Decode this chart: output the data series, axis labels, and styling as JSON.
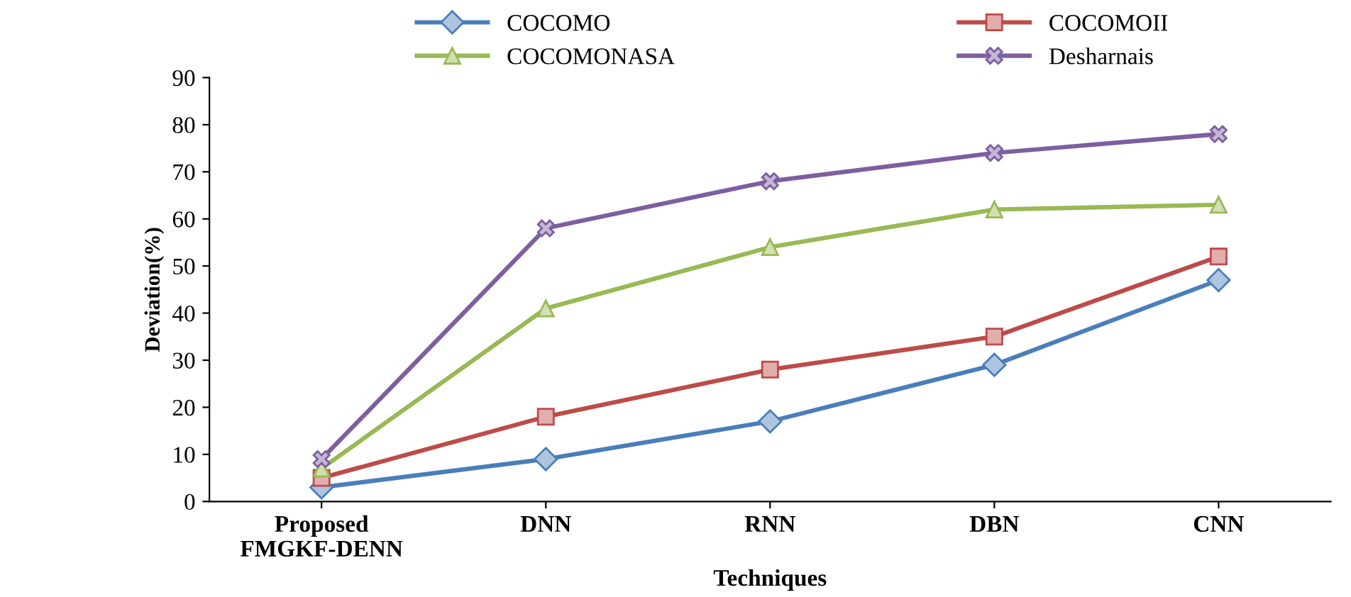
{
  "chart_data": {
    "type": "line",
    "xlabel": "Techniques",
    "ylabel": "Deviation(%)",
    "categories": [
      "Proposed\nFMGKF-DENN",
      "DNN",
      "RNN",
      "DBN",
      "CNN"
    ],
    "series": [
      {
        "name": "COCOMO",
        "color": "#4a7ebb",
        "marker": "diamond",
        "values": [
          3,
          9,
          17,
          29,
          47
        ]
      },
      {
        "name": "COCOMOII",
        "color": "#be4b48",
        "marker": "square",
        "values": [
          5,
          18,
          28,
          35,
          52
        ]
      },
      {
        "name": "COCOMONASA",
        "color": "#98b954",
        "marker": "triangle",
        "values": [
          7,
          41,
          54,
          62,
          63
        ]
      },
      {
        "name": "Desharnais",
        "color": "#7d5fa0",
        "marker": "cross",
        "values": [
          9,
          58,
          68,
          74,
          78
        ]
      }
    ],
    "ylim": [
      0,
      90
    ],
    "yticks": [
      0,
      10,
      20,
      30,
      40,
      50,
      60,
      70,
      80,
      90
    ],
    "grid": false,
    "legend": "top",
    "line_style": "solid"
  }
}
